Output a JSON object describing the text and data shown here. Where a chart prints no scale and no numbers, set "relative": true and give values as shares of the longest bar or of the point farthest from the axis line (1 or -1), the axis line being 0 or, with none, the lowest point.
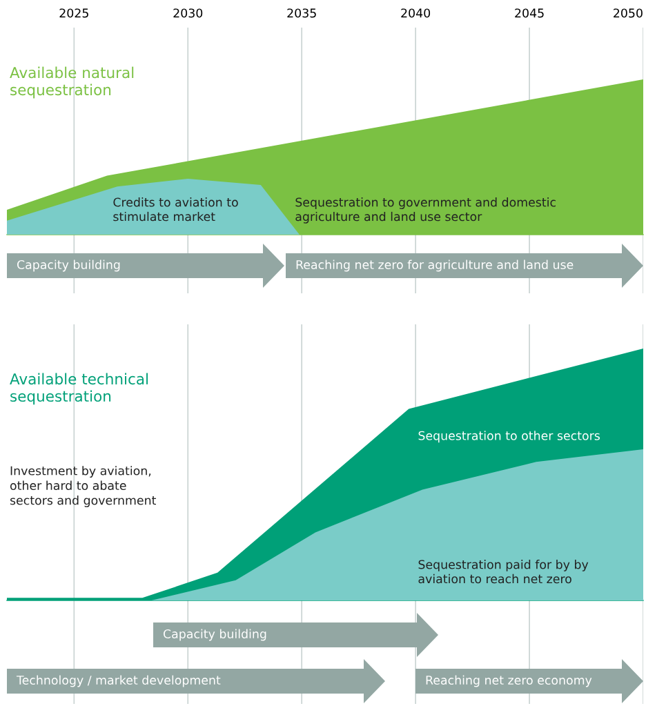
{
  "chart_data": [
    {
      "type": "area",
      "title": "Available natural\nsequestration",
      "relative": true,
      "xlim": [
        2022.05,
        2050
      ],
      "xticks": [
        2025,
        2030,
        2035,
        2040,
        2045,
        2050
      ],
      "tick_labels": "x",
      "grid": "x",
      "legend": false,
      "annotations": [
        "Capacity building",
        "Reaching net zero for agriculture and land use"
      ],
      "series": [
        {
          "name": "Sequestration to government and domestic\nagriculture and land use sector",
          "color": "#7bc143",
          "x": [
            2022.05,
            2026.45,
            2050
          ],
          "values": [
            0.16,
            0.38,
            1
          ]
        },
        {
          "name": "Credits to aviation to\nstimulate market",
          "color": "#7accc8",
          "x": [
            2022.05,
            2026.9,
            2030,
            2033.2,
            2034.9,
            2050
          ],
          "values": [
            0.09,
            0.31,
            0.36,
            0.32,
            0,
            0
          ]
        }
      ]
    },
    {
      "type": "area",
      "title": "Available technical\nsequestration",
      "relative": true,
      "xlim": [
        2022.05,
        2050
      ],
      "tick_labels": false,
      "grid": "x",
      "legend": false,
      "series": [
        {
          "name": "Sequestration to other sectors",
          "color": "#00a078",
          "x": [
            2022.05,
            2028,
            2031.3,
            2039.7,
            2050
          ],
          "values": [
            0.01,
            0.01,
            0.11,
            0.76,
            1
          ]
        },
        {
          "name": "Sequestration paid for by by\naviation to reach net zero",
          "color": "#7accc8",
          "x": [
            2022.05,
            2028.4,
            2032.1,
            2035.6,
            2040.3,
            2045.3,
            2050
          ],
          "values": [
            0,
            0,
            0.08,
            0.27,
            0.44,
            0.55,
            0.6
          ]
        }
      ],
      "annotations": [
        "Investment by aviation,\nother hard to abate\nsectors and government",
        "Capacity building",
        "Technology / market development",
        "Reaching net zero economy"
      ]
    }
  ]
}
